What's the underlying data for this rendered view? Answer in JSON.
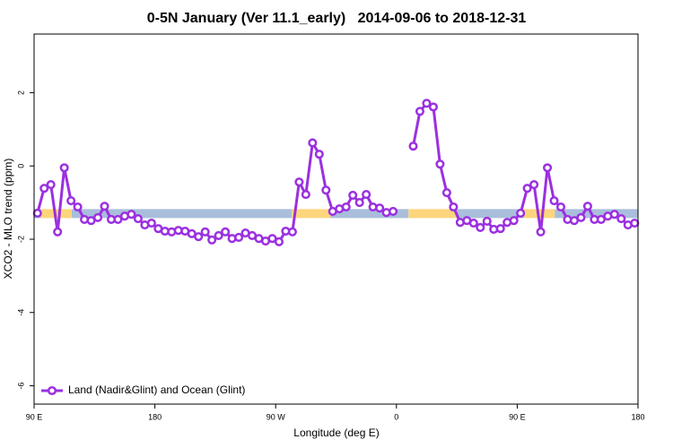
{
  "chart_data": {
    "type": "line",
    "title": "0-5N January (Ver 11.1_early)   2014-09-06 to 2018-12-31",
    "x_label": "Longitude (deg E)",
    "y_label": "XCO2 - MLO trend (ppm)",
    "xlim": [
      90,
      540
    ],
    "ylim": [
      -6.5,
      3.6
    ],
    "xticks": [
      {
        "value": 90,
        "label": "90 E"
      },
      {
        "value": 180,
        "label": "180"
      },
      {
        "value": 270,
        "label": "90 W"
      },
      {
        "value": 360,
        "label": "0"
      },
      {
        "value": 450,
        "label": "90 E"
      },
      {
        "value": 540,
        "label": "180"
      }
    ],
    "yticks": [
      2,
      0,
      -2,
      -4,
      -6
    ],
    "legend": "bottom-left",
    "band_y": -1.3,
    "bands": [
      {
        "from": 90,
        "to": 95,
        "color": "#a9bedc"
      },
      {
        "from": 95,
        "to": 118,
        "color": "#fdd57c"
      },
      {
        "from": 118,
        "to": 282,
        "color": "#a9bedc"
      },
      {
        "from": 282,
        "to": 311,
        "color": "#fdd57c"
      },
      {
        "from": 311,
        "to": 369,
        "color": "#a9bedc"
      },
      {
        "from": 369,
        "to": 405,
        "color": "#fdd57c"
      },
      {
        "from": 405,
        "to": 455,
        "color": "#a9bedc"
      },
      {
        "from": 455,
        "to": 478,
        "color": "#fdd57c"
      },
      {
        "from": 478,
        "to": 540,
        "color": "#a9bedc"
      }
    ],
    "x": [
      92.5,
      97.5,
      102.5,
      107.5,
      112.5,
      117.5,
      122.5,
      127.5,
      132.5,
      137.5,
      142.5,
      147.5,
      152.5,
      157.5,
      162.5,
      167.5,
      172.5,
      177.5,
      182.5,
      187.5,
      192.5,
      197.5,
      202.5,
      207.5,
      212.5,
      217.5,
      222.5,
      227.5,
      232.5,
      237.5,
      242.5,
      247.5,
      252.5,
      257.5,
      262.5,
      267.5,
      272.5,
      277.5,
      282.5,
      287.5,
      292.5,
      297.5,
      302.5,
      307.5,
      312.5,
      317.5,
      322.5,
      327.5,
      332.5,
      337.5,
      342.5,
      347.5,
      352.5,
      357.5,
      362.5,
      367.5,
      372.5,
      377.5,
      382.5,
      387.5,
      392.5,
      397.5,
      402.5,
      407.5,
      412.5,
      417.5,
      422.5,
      427.5,
      432.5,
      437.5,
      442.5,
      447.5,
      452.5,
      457.5,
      462.5,
      467.5,
      472.5,
      477.5,
      482.5,
      487.5,
      492.5,
      497.5,
      502.5,
      507.5,
      512.5,
      517.5,
      522.5,
      527.5,
      532.5,
      537.5
    ],
    "series": [
      {
        "name": "Land (Nadir&Glint) and Ocean (Glint)",
        "color": "#9b30e0",
        "values": [
          -1.29,
          -0.61,
          -0.51,
          -1.8,
          -0.05,
          -0.95,
          -1.12,
          -1.46,
          -1.49,
          -1.41,
          -1.1,
          -1.46,
          -1.46,
          -1.37,
          -1.32,
          -1.44,
          -1.61,
          -1.56,
          -1.71,
          -1.78,
          -1.8,
          -1.76,
          -1.78,
          -1.85,
          -1.93,
          -1.8,
          -2.02,
          -1.9,
          -1.8,
          -1.98,
          -1.95,
          -1.83,
          -1.9,
          -1.98,
          -2.05,
          -1.98,
          -2.07,
          -1.78,
          -1.8,
          -0.44,
          -0.78,
          0.63,
          0.32,
          -0.66,
          -1.24,
          -1.17,
          -1.12,
          -0.8,
          -1.0,
          -0.78,
          -1.12,
          -1.15,
          -1.27,
          -1.24,
          null,
          null,
          0.54,
          1.49,
          1.71,
          1.61,
          0.05,
          -0.73,
          -1.12,
          -1.54,
          -1.49,
          -1.56,
          -1.68,
          -1.51,
          -1.73,
          -1.71,
          -1.54,
          -1.49,
          -1.29,
          -0.61,
          -0.51,
          -1.8,
          -0.05,
          -0.95,
          -1.12,
          -1.46,
          -1.49,
          -1.41,
          -1.1,
          -1.46,
          -1.46,
          -1.37,
          -1.32,
          -1.44,
          -1.61,
          -1.56
        ]
      }
    ]
  }
}
